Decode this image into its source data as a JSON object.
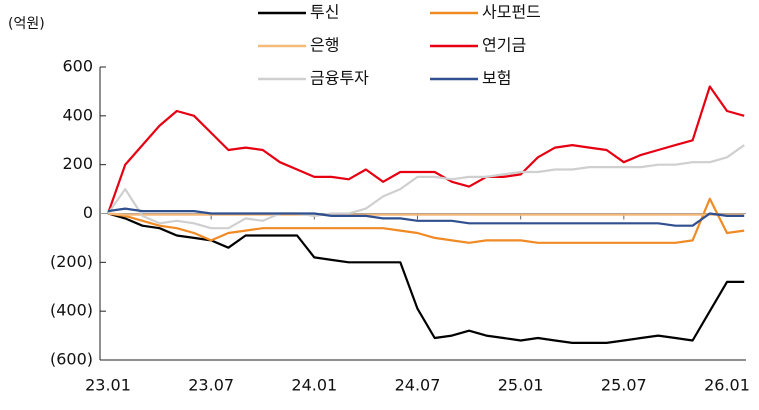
{
  "chart_data": {
    "type": "line",
    "unit_label": "(억원)",
    "categories": [
      "23.01",
      null,
      null,
      null,
      null,
      null,
      "23.07",
      null,
      null,
      null,
      null,
      null,
      "24.01",
      null,
      null,
      null,
      null,
      null,
      "24.07",
      null,
      null,
      null,
      null,
      null,
      "25.01",
      null,
      null,
      null,
      null,
      null,
      "25.07",
      null,
      null,
      null,
      null,
      null,
      "26.01",
      null
    ],
    "series": [
      {
        "name": "투신",
        "color": "#000000",
        "values": [
          0,
          -20,
          -50,
          -60,
          -90,
          -100,
          -110,
          -140,
          -90,
          -90,
          -90,
          -90,
          -180,
          -190,
          -200,
          -200,
          -200,
          -200,
          -390,
          -510,
          -500,
          -480,
          -500,
          -510,
          -520,
          -510,
          -520,
          -530,
          -530,
          -530,
          -520,
          -510,
          -500,
          -510,
          -520,
          -400,
          -280,
          -280
        ]
      },
      {
        "name": "사모펀드",
        "color": "#f08a24",
        "values": [
          0,
          -10,
          -30,
          -50,
          -60,
          -80,
          -110,
          -80,
          -70,
          -60,
          -60,
          -60,
          -60,
          -60,
          -60,
          -60,
          -60,
          -70,
          -80,
          -100,
          -110,
          -120,
          -110,
          -110,
          -110,
          -120,
          -120,
          -120,
          -120,
          -120,
          -120,
          -120,
          -120,
          -120,
          -110,
          60,
          -80,
          -70
        ]
      },
      {
        "name": "은행",
        "color": "#f5b97a",
        "values": [
          0,
          -5,
          -5,
          -5,
          -5,
          -5,
          -5,
          -5,
          -5,
          -5,
          -5,
          -5,
          -5,
          -5,
          -5,
          -5,
          -5,
          -5,
          -5,
          -5,
          -5,
          -5,
          -5,
          -5,
          -5,
          -5,
          -5,
          -5,
          -5,
          -5,
          -5,
          -5,
          -5,
          -5,
          -5,
          -5,
          -5,
          -5
        ]
      },
      {
        "name": "연기금",
        "color": "#e60012",
        "values": [
          0,
          200,
          280,
          360,
          420,
          400,
          330,
          260,
          270,
          260,
          210,
          180,
          150,
          150,
          140,
          180,
          130,
          170,
          170,
          170,
          130,
          110,
          150,
          150,
          160,
          230,
          270,
          280,
          270,
          260,
          210,
          240,
          260,
          280,
          300,
          520,
          420,
          400
        ]
      },
      {
        "name": "금융투자",
        "color": "#cfcfcf",
        "values": [
          0,
          100,
          -10,
          -40,
          -30,
          -40,
          -60,
          -60,
          -20,
          -30,
          0,
          0,
          -10,
          0,
          0,
          20,
          70,
          100,
          150,
          150,
          140,
          150,
          150,
          160,
          170,
          170,
          180,
          180,
          190,
          190,
          190,
          190,
          200,
          200,
          210,
          210,
          230,
          280
        ]
      },
      {
        "name": "보험",
        "color": "#2f4f8f",
        "values": [
          10,
          20,
          10,
          10,
          10,
          10,
          0,
          0,
          0,
          0,
          0,
          0,
          0,
          -10,
          -10,
          -10,
          -20,
          -20,
          -30,
          -30,
          -30,
          -40,
          -40,
          -40,
          -40,
          -40,
          -40,
          -40,
          -40,
          -40,
          -40,
          -40,
          -40,
          -50,
          -50,
          0,
          -10,
          -10
        ]
      }
    ],
    "ylim": [
      -600,
      600
    ],
    "yticks": [
      {
        "value": -600,
        "label": "(600)"
      },
      {
        "value": -400,
        "label": "(400)"
      },
      {
        "value": -200,
        "label": "(200)"
      },
      0,
      200,
      400,
      600
    ]
  }
}
